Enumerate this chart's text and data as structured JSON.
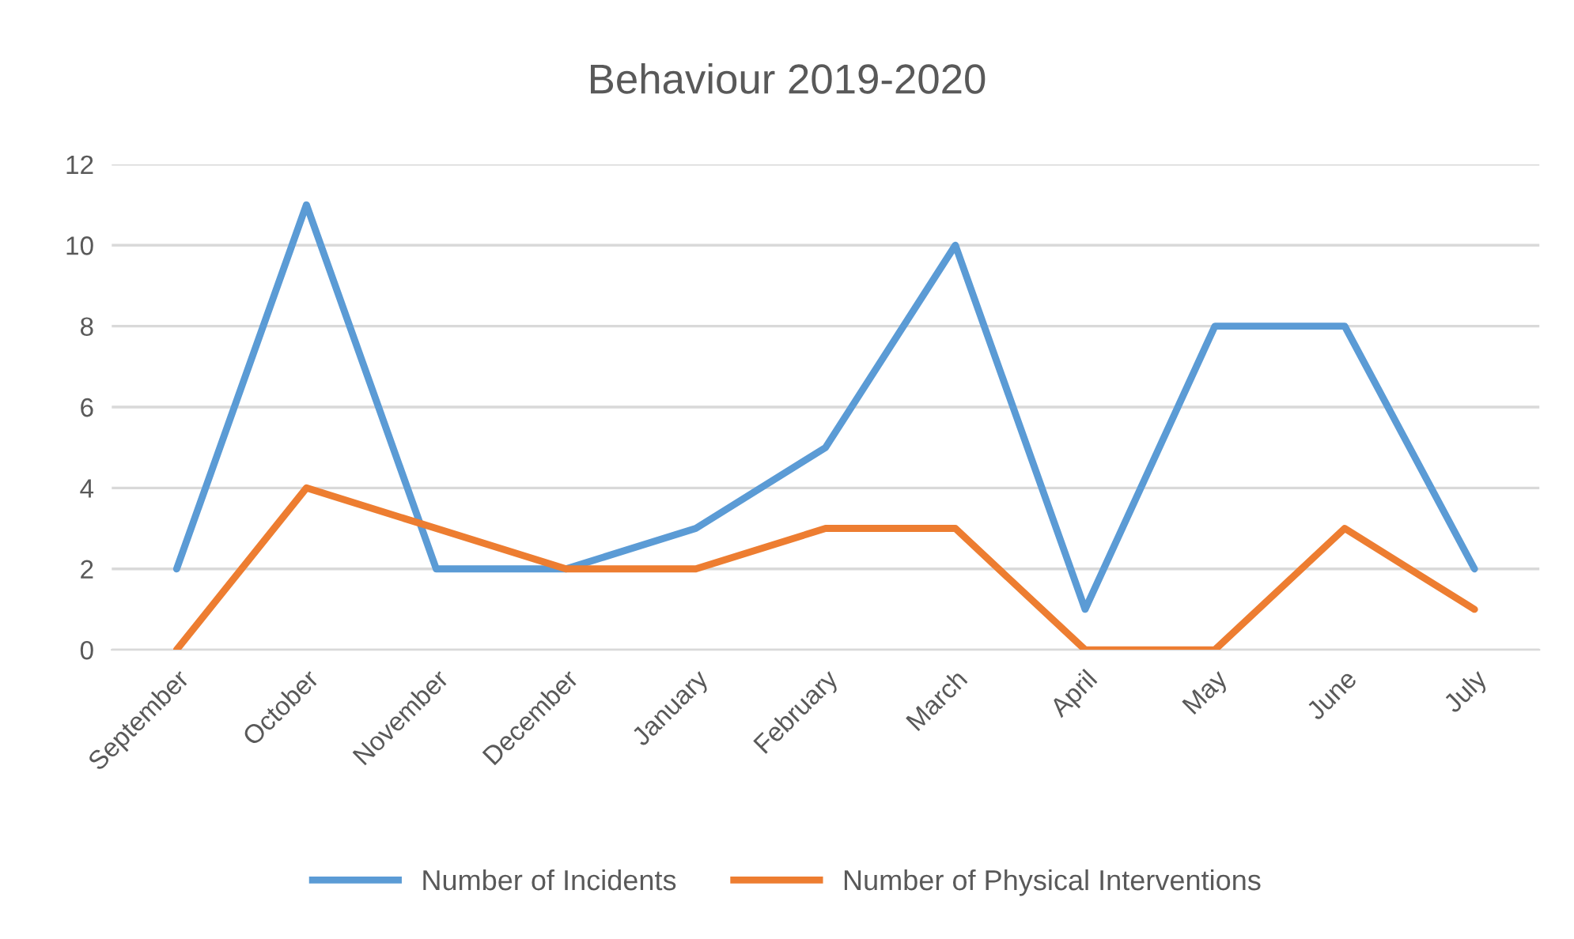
{
  "chart_data": {
    "type": "line",
    "title": "Behaviour 2019-2020",
    "categories": [
      "September",
      "October",
      "November",
      "December",
      "January",
      "February",
      "March",
      "April",
      "May",
      "June",
      "July"
    ],
    "series": [
      {
        "name": "Number of Incidents",
        "color": "#5b9bd5",
        "values": [
          2,
          11,
          2,
          2,
          3,
          5,
          10,
          1,
          8,
          8,
          2
        ]
      },
      {
        "name": "Number of Physical Interventions",
        "color": "#ed7d31",
        "values": [
          0,
          4,
          3,
          2,
          2,
          3,
          3,
          0,
          0,
          3,
          1
        ]
      }
    ],
    "ylim": [
      0,
      12
    ],
    "yticks": [
      0,
      2,
      4,
      6,
      8,
      10,
      12
    ],
    "grid": "y",
    "legend": "bottom",
    "marker": "none",
    "line_style": "solid"
  }
}
